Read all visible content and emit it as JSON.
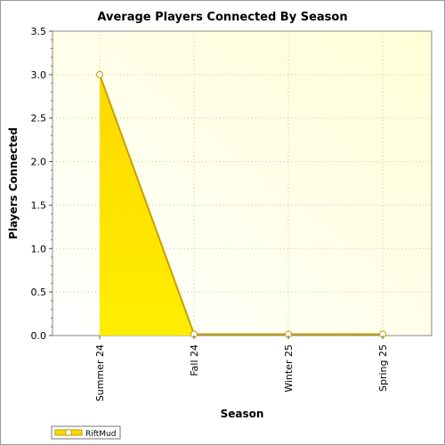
{
  "chart_data": {
    "type": "area",
    "title": "Average Players Connected By Season",
    "xlabel": "Season",
    "ylabel": "Players Connected",
    "categories": [
      "Summer 24",
      "Fall 24",
      "Winter 25",
      "Spring 25"
    ],
    "series": [
      {
        "name": "RiftMud",
        "values": [
          3.0,
          0.0,
          0.0,
          0.0
        ]
      }
    ],
    "ylim": [
      0,
      3.5
    ],
    "yticks": [
      "0.0",
      "0.5",
      "1.0",
      "1.5",
      "2.0",
      "2.5",
      "3.0",
      "3.5"
    ],
    "grid": true,
    "legend_placement": "bottom-left",
    "colors": {
      "area_top": "#ffd800",
      "area_bottom": "#ffee00",
      "line": "#c8a000",
      "plot_bg_light": "#ffffe0",
      "plot_bg_mid": "#fffff0",
      "grid": "#c8c8a0"
    }
  }
}
